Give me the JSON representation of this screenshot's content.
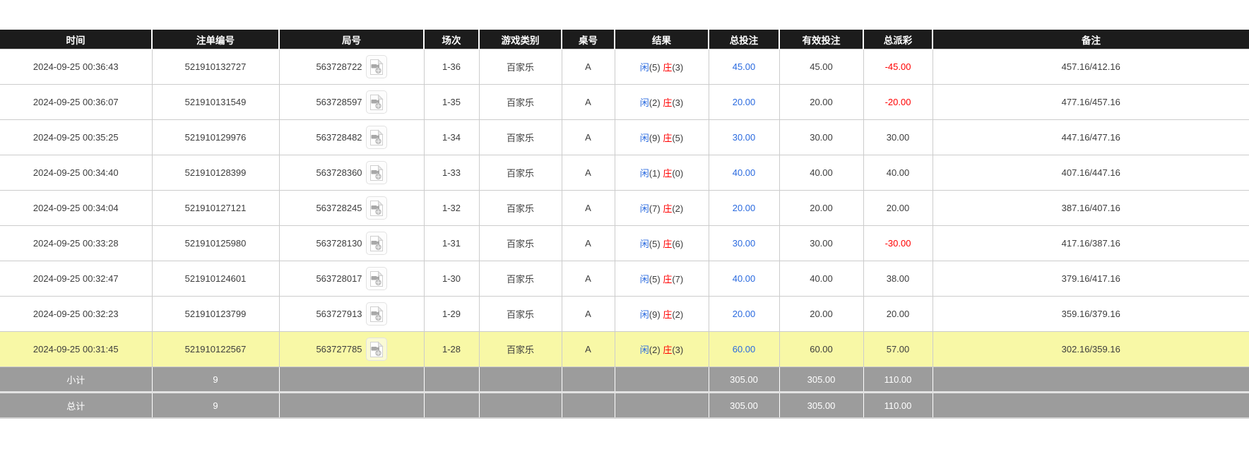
{
  "table": {
    "headers": [
      "时间",
      "注单编号",
      "局号",
      "场次",
      "游戏类别",
      "桌号",
      "结果",
      "总投注",
      "有效投注",
      "总派彩",
      "备注"
    ],
    "rows": [
      {
        "time": "2024-09-25 00:36:43",
        "bet_id": "521910132727",
        "round_id": "563728722",
        "session": "1-36",
        "game_type": "百家乐",
        "table_no": "A",
        "result": {
          "player": "闲",
          "player_pts": "(5)",
          "banker": "庄",
          "banker_pts": "(3)"
        },
        "total_bet": "45.00",
        "valid_bet": "45.00",
        "total_payout": "-45.00",
        "remark": "457.16/412.16",
        "highlight": false
      },
      {
        "time": "2024-09-25 00:36:07",
        "bet_id": "521910131549",
        "round_id": "563728597",
        "session": "1-35",
        "game_type": "百家乐",
        "table_no": "A",
        "result": {
          "player": "闲",
          "player_pts": "(2)",
          "banker": "庄",
          "banker_pts": "(3)"
        },
        "total_bet": "20.00",
        "valid_bet": "20.00",
        "total_payout": "-20.00",
        "remark": "477.16/457.16",
        "highlight": false
      },
      {
        "time": "2024-09-25 00:35:25",
        "bet_id": "521910129976",
        "round_id": "563728482",
        "session": "1-34",
        "game_type": "百家乐",
        "table_no": "A",
        "result": {
          "player": "闲",
          "player_pts": "(9)",
          "banker": "庄",
          "banker_pts": "(5)"
        },
        "total_bet": "30.00",
        "valid_bet": "30.00",
        "total_payout": "30.00",
        "remark": "447.16/477.16",
        "highlight": false
      },
      {
        "time": "2024-09-25 00:34:40",
        "bet_id": "521910128399",
        "round_id": "563728360",
        "session": "1-33",
        "game_type": "百家乐",
        "table_no": "A",
        "result": {
          "player": "闲",
          "player_pts": "(1)",
          "banker": "庄",
          "banker_pts": "(0)"
        },
        "total_bet": "40.00",
        "valid_bet": "40.00",
        "total_payout": "40.00",
        "remark": "407.16/447.16",
        "highlight": false
      },
      {
        "time": "2024-09-25 00:34:04",
        "bet_id": "521910127121",
        "round_id": "563728245",
        "session": "1-32",
        "game_type": "百家乐",
        "table_no": "A",
        "result": {
          "player": "闲",
          "player_pts": "(7)",
          "banker": "庄",
          "banker_pts": "(2)"
        },
        "total_bet": "20.00",
        "valid_bet": "20.00",
        "total_payout": "20.00",
        "remark": "387.16/407.16",
        "highlight": false
      },
      {
        "time": "2024-09-25 00:33:28",
        "bet_id": "521910125980",
        "round_id": "563728130",
        "session": "1-31",
        "game_type": "百家乐",
        "table_no": "A",
        "result": {
          "player": "闲",
          "player_pts": "(5)",
          "banker": "庄",
          "banker_pts": "(6)"
        },
        "total_bet": "30.00",
        "valid_bet": "30.00",
        "total_payout": "-30.00",
        "remark": "417.16/387.16",
        "highlight": false
      },
      {
        "time": "2024-09-25 00:32:47",
        "bet_id": "521910124601",
        "round_id": "563728017",
        "session": "1-30",
        "game_type": "百家乐",
        "table_no": "A",
        "result": {
          "player": "闲",
          "player_pts": "(5)",
          "banker": "庄",
          "banker_pts": "(7)"
        },
        "total_bet": "40.00",
        "valid_bet": "40.00",
        "total_payout": "38.00",
        "remark": "379.16/417.16",
        "highlight": false
      },
      {
        "time": "2024-09-25 00:32:23",
        "bet_id": "521910123799",
        "round_id": "563727913",
        "session": "1-29",
        "game_type": "百家乐",
        "table_no": "A",
        "result": {
          "player": "闲",
          "player_pts": "(9)",
          "banker": "庄",
          "banker_pts": "(2)"
        },
        "total_bet": "20.00",
        "valid_bet": "20.00",
        "total_payout": "20.00",
        "remark": "359.16/379.16",
        "highlight": false
      },
      {
        "time": "2024-09-25 00:31:45",
        "bet_id": "521910122567",
        "round_id": "563727785",
        "session": "1-28",
        "game_type": "百家乐",
        "table_no": "A",
        "result": {
          "player": "闲",
          "player_pts": "(2)",
          "banker": "庄",
          "banker_pts": "(3)"
        },
        "total_bet": "60.00",
        "valid_bet": "60.00",
        "total_payout": "57.00",
        "remark": "302.16/359.16",
        "highlight": true
      }
    ],
    "summary_rows": [
      {
        "label": "小计",
        "count": "9",
        "total_bet": "305.00",
        "valid_bet": "305.00",
        "total_payout": "110.00"
      },
      {
        "label": "总计",
        "count": "9",
        "total_bet": "305.00",
        "valid_bet": "305.00",
        "total_payout": "110.00"
      }
    ],
    "icons": {
      "round_video_icon": "video-file-icon"
    }
  },
  "colors": {
    "header_bg": "#1c1c1c",
    "highlight_row_bg": "#f8f8a6",
    "summary_row_bg": "#9c9c9c",
    "player_blue": "#2a6adf",
    "banker_red": "#ff0000",
    "negative_red": "#ff0000"
  }
}
